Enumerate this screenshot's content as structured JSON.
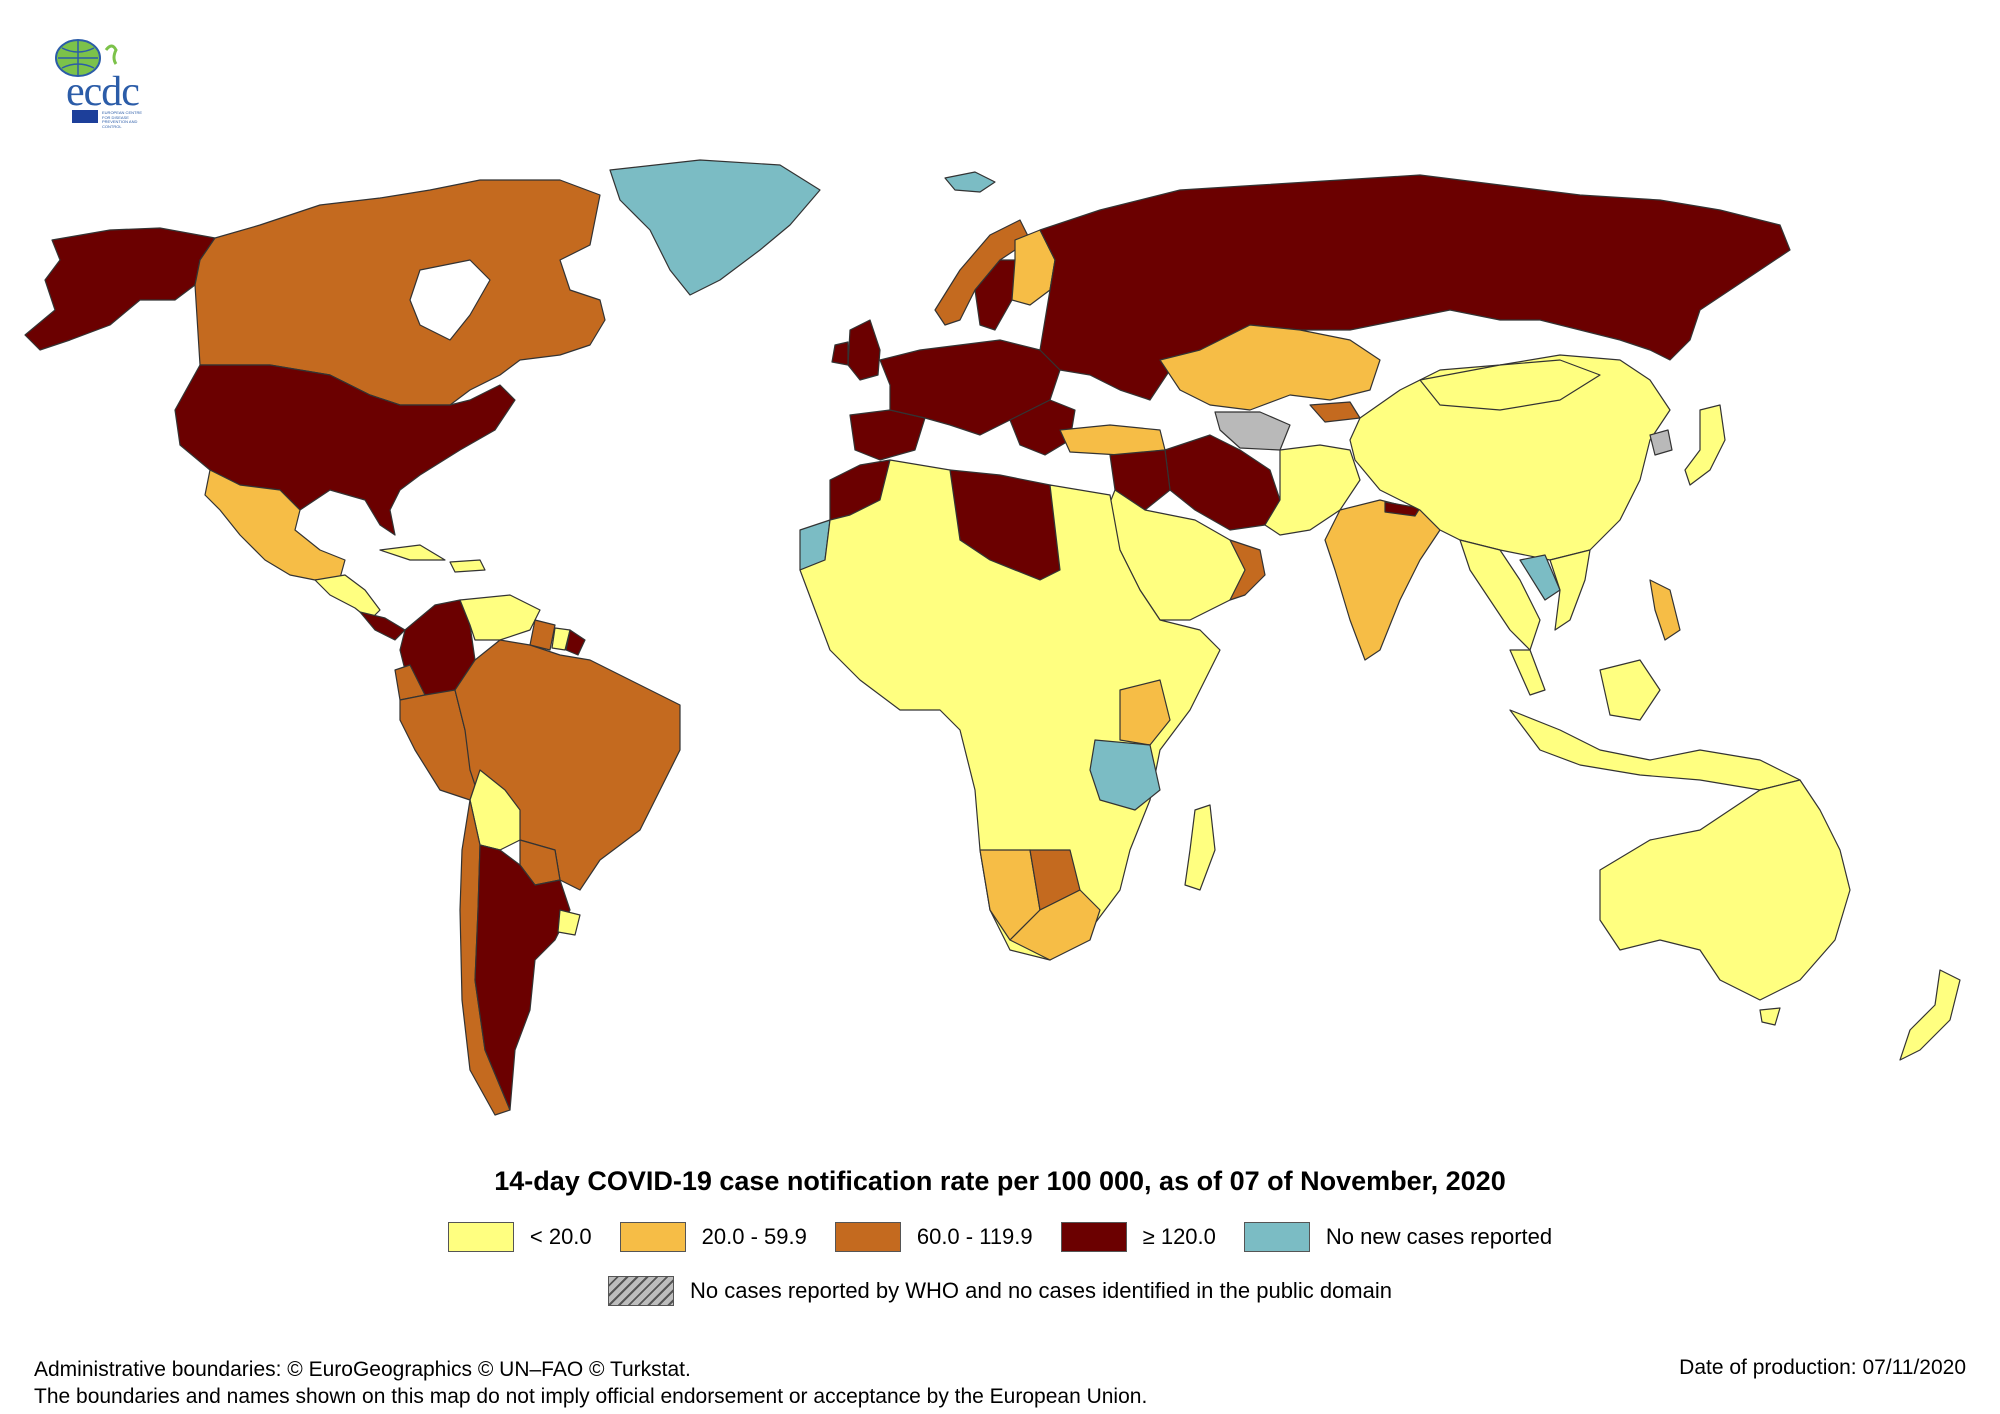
{
  "logo": {
    "text": "ecdc",
    "subtext": "EUROPEAN CENTRE FOR DISEASE PREVENTION AND CONTROL"
  },
  "title": "14-day COVID-19 case notification rate per 100 000, as of 07 of November, 2020",
  "legend": {
    "classes": [
      {
        "label": "< 20.0",
        "color": "#ffff80"
      },
      {
        "label": "20.0 - 59.9",
        "color": "#f6bd46"
      },
      {
        "label": "60.0 - 119.9",
        "color": "#c46a1f"
      },
      {
        "label": "≥ 120.0",
        "color": "#6b0000"
      },
      {
        "label": "No new cases reported",
        "color": "#7bbcc4"
      }
    ],
    "no_data_label": "No cases reported by WHO and no cases identified in the public domain"
  },
  "footer": {
    "line1": "Administrative boundaries: © EuroGeographics © UN–FAO © Turkstat.",
    "line2": "The boundaries and names shown on this map do not imply official endorsement or acceptance by the European Union.",
    "date": "Date of production: 07/11/2020"
  }
}
